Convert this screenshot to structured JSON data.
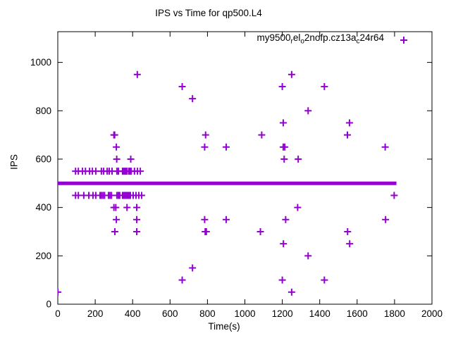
{
  "chart_data": {
    "type": "scatter",
    "title": "IPS vs Time for qp500.L4",
    "xlabel": "Time(s)",
    "ylabel": "IPS",
    "xlim": [
      0,
      2000
    ],
    "ylim": [
      0,
      1127
    ],
    "xticks": [
      0,
      200,
      400,
      600,
      800,
      1000,
      1200,
      1400,
      1600,
      1800,
      2000
    ],
    "yticks": [
      0,
      200,
      400,
      600,
      800,
      1000
    ],
    "grid": false,
    "legend_position": "top-right-inside",
    "marker": "plus",
    "marker_color": "#9400d3",
    "axis_color": "#000000",
    "background_color": "#ffffff",
    "series": [
      {
        "name": "my9500_rel_o2nofp.cz13a_c24r64",
        "name_parts": [
          {
            "type": "text",
            "value": "my9500"
          },
          {
            "type": "sub",
            "value": "r"
          },
          {
            "type": "text",
            "value": "el"
          },
          {
            "type": "sub",
            "value": "o"
          },
          {
            "type": "text",
            "value": "2nofp.cz13a"
          },
          {
            "type": "sub",
            "value": "c"
          },
          {
            "type": "text",
            "value": "24r64"
          }
        ],
        "band": {
          "y": 500,
          "x_start": 0,
          "x_end": 1810,
          "note": "dense overlapping markers forming a solid line at IPS 500"
        },
        "points": [
          [
            0,
            50
          ],
          [
            95,
            550
          ],
          [
            110,
            550
          ],
          [
            132,
            550
          ],
          [
            148,
            550
          ],
          [
            170,
            550
          ],
          [
            185,
            550
          ],
          [
            203,
            550
          ],
          [
            233,
            550
          ],
          [
            245,
            550
          ],
          [
            264,
            550
          ],
          [
            275,
            550
          ],
          [
            290,
            550
          ],
          [
            316,
            550
          ],
          [
            324,
            550
          ],
          [
            346,
            550
          ],
          [
            352,
            550
          ],
          [
            358,
            550
          ],
          [
            364,
            550
          ],
          [
            370,
            550
          ],
          [
            380,
            550
          ],
          [
            386,
            550
          ],
          [
            392,
            550
          ],
          [
            410,
            550
          ],
          [
            426,
            550
          ],
          [
            441,
            550
          ],
          [
            95,
            450
          ],
          [
            110,
            450
          ],
          [
            139,
            450
          ],
          [
            166,
            450
          ],
          [
            188,
            450
          ],
          [
            203,
            450
          ],
          [
            226,
            450
          ],
          [
            234,
            450
          ],
          [
            242,
            450
          ],
          [
            250,
            450
          ],
          [
            271,
            450
          ],
          [
            279,
            450
          ],
          [
            287,
            450
          ],
          [
            316,
            450
          ],
          [
            324,
            450
          ],
          [
            331,
            450
          ],
          [
            346,
            450
          ],
          [
            352,
            450
          ],
          [
            358,
            450
          ],
          [
            364,
            450
          ],
          [
            370,
            450
          ],
          [
            376,
            450
          ],
          [
            382,
            450
          ],
          [
            388,
            450
          ],
          [
            403,
            450
          ],
          [
            418,
            450
          ],
          [
            433,
            450
          ],
          [
            448,
            450
          ],
          [
            300,
            700
          ],
          [
            304,
            700
          ],
          [
            313,
            650
          ],
          [
            315,
            600
          ],
          [
            390,
            600
          ],
          [
            300,
            400
          ],
          [
            310,
            400
          ],
          [
            370,
            400
          ],
          [
            422,
            400
          ],
          [
            313,
            350
          ],
          [
            422,
            350
          ],
          [
            305,
            300
          ],
          [
            422,
            300
          ],
          [
            425,
            950
          ],
          [
            665,
            900
          ],
          [
            720,
            850
          ],
          [
            790,
            700
          ],
          [
            785,
            650
          ],
          [
            900,
            650
          ],
          [
            785,
            350
          ],
          [
            900,
            350
          ],
          [
            788,
            300
          ],
          [
            794,
            300
          ],
          [
            720,
            150
          ],
          [
            665,
            100
          ],
          [
            1083,
            300
          ],
          [
            1090,
            700
          ],
          [
            1200,
            900
          ],
          [
            1200,
            100
          ],
          [
            1205,
            750
          ],
          [
            1205,
            650
          ],
          [
            1213,
            650
          ],
          [
            1206,
            250
          ],
          [
            1210,
            600
          ],
          [
            1218,
            350
          ],
          [
            1250,
            950
          ],
          [
            1250,
            50
          ],
          [
            1282,
            400
          ],
          [
            1285,
            600
          ],
          [
            1338,
            800
          ],
          [
            1338,
            200
          ],
          [
            1425,
            900
          ],
          [
            1425,
            100
          ],
          [
            1548,
            700
          ],
          [
            1549,
            300
          ],
          [
            1559,
            750
          ],
          [
            1560,
            250
          ],
          [
            1750,
            650
          ],
          [
            1752,
            350
          ],
          [
            1798,
            450
          ]
        ]
      }
    ]
  }
}
